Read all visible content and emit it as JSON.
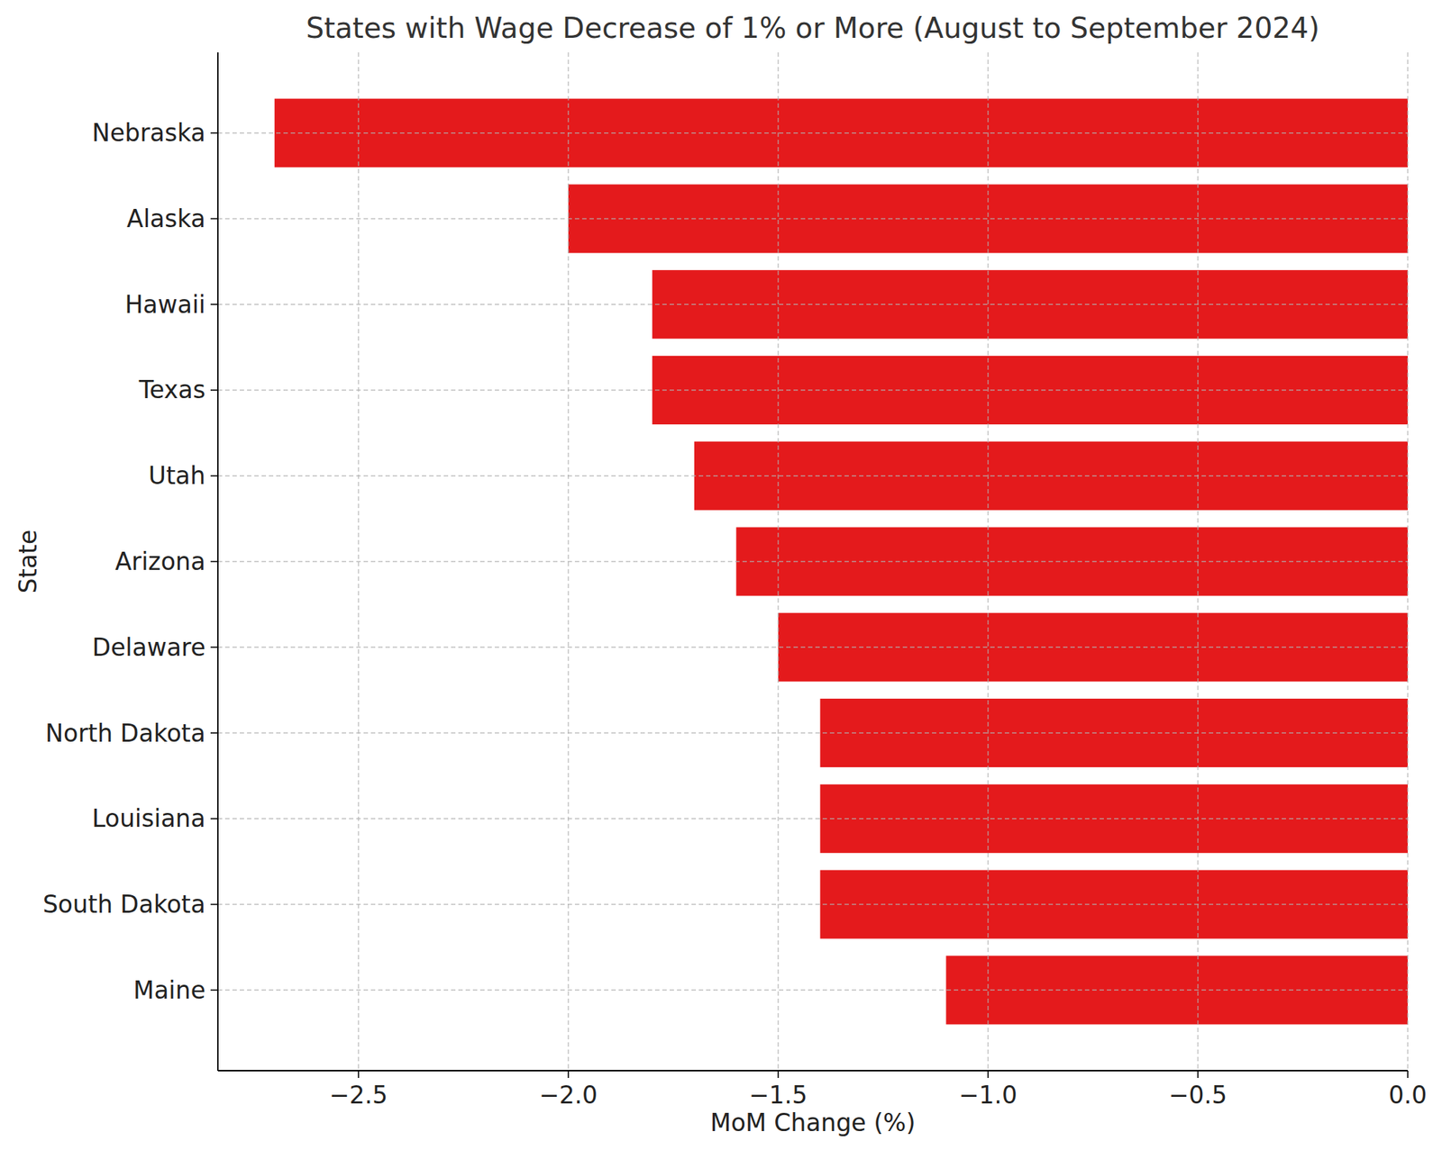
{
  "chart_data": {
    "type": "bar",
    "orientation": "horizontal",
    "title": "States with Wage Decrease of 1% or More (August to September 2024)",
    "x_label": "MoM Change (%)",
    "y_label": "State",
    "categories": [
      "Nebraska",
      "Alaska",
      "Hawaii",
      "Texas",
      "Utah",
      "Arizona",
      "Delaware",
      "North Dakota",
      "Louisiana",
      "South Dakota",
      "Maine"
    ],
    "values": [
      -2.7,
      -2.0,
      -1.8,
      -1.8,
      -1.7,
      -1.6,
      -1.5,
      -1.4,
      -1.4,
      -1.4,
      -1.1
    ],
    "color": "#e41a1c",
    "xlim": [
      -2.835,
      0
    ],
    "xticks": [
      {
        "value": -2.5,
        "label": "−2.5"
      },
      {
        "value": -2.0,
        "label": "−2.0"
      },
      {
        "value": -1.5,
        "label": "−1.5"
      },
      {
        "value": -1.0,
        "label": "−1.0"
      },
      {
        "value": -0.5,
        "label": "−0.5"
      },
      {
        "value": 0,
        "label": "0.0"
      }
    ],
    "grid": true
  }
}
